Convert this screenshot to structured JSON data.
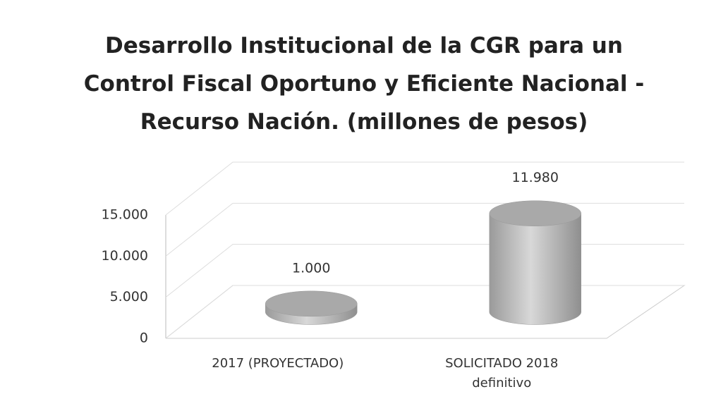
{
  "chart_data": {
    "type": "bar",
    "title": "Desarrollo Institucional de la CGR para un Control Fiscal Oportuno y Eficiente Nacional - Recurso Nación. (millones de pesos)",
    "categories": [
      "2017 (PROYECTADO)",
      "SOLICITADO 2018 definitivo"
    ],
    "values": [
      1000,
      11980
    ],
    "value_labels": [
      "1.000",
      "11.980"
    ],
    "color": "#a9a9a9",
    "ylim": [
      0,
      15000
    ],
    "yticks": [
      0,
      {
        "value": 5000,
        "label": "5.000"
      },
      {
        "value": 10000,
        "label": "10.000"
      },
      {
        "value": 15000,
        "label": "15.000"
      }
    ],
    "grid": true
  }
}
